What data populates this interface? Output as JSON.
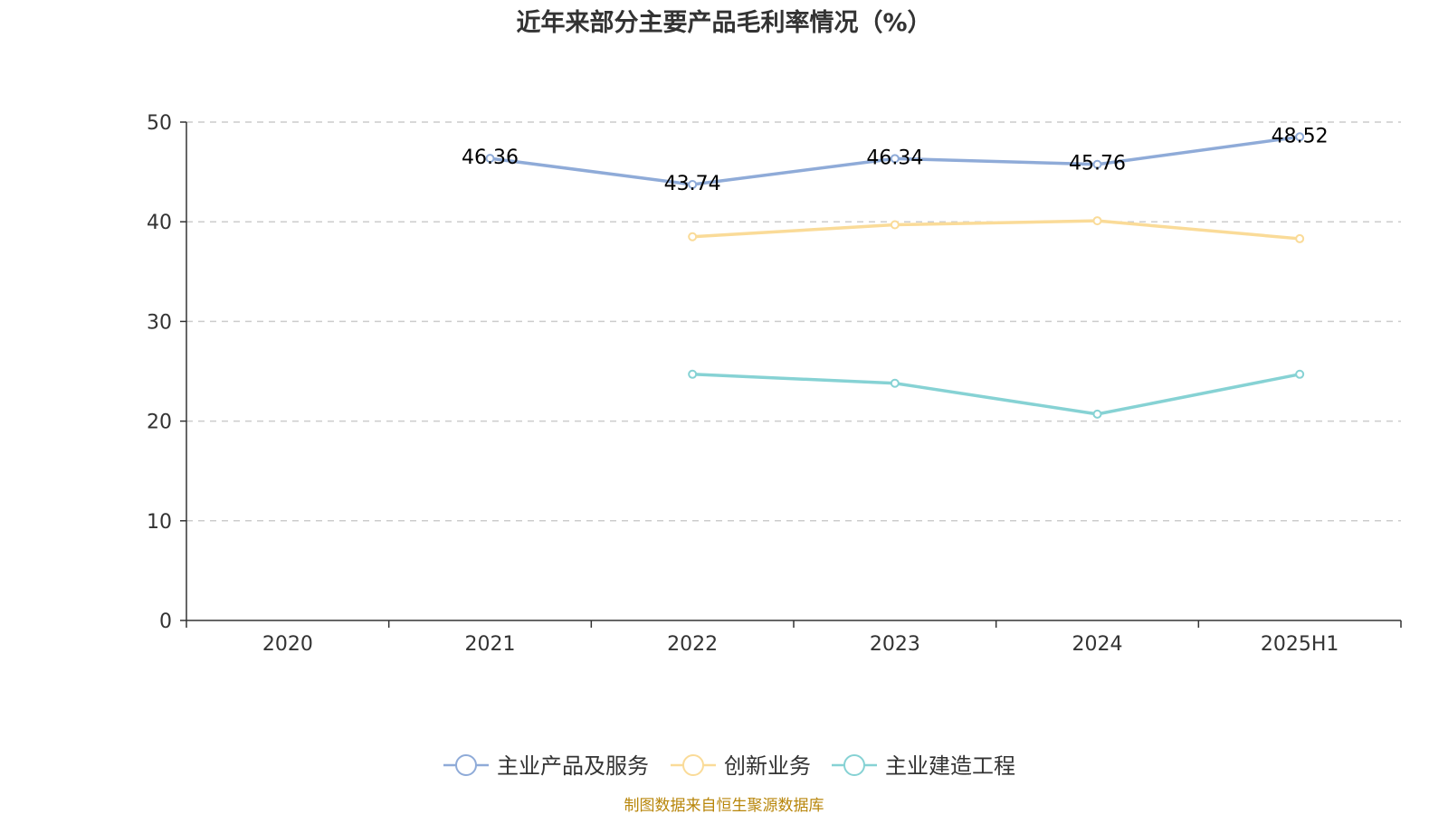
{
  "chart_data": {
    "type": "line",
    "title": "近年来部分主要产品毛利率情况（%）",
    "categories": [
      "2020",
      "2021",
      "2022",
      "2023",
      "2024",
      "2025H1"
    ],
    "ylim": [
      0,
      50
    ],
    "yticks": [
      0,
      10,
      20,
      30,
      40,
      50
    ],
    "grid": true,
    "legend_position": "bottom",
    "series": [
      {
        "name": "主业产品及服务",
        "color": "#8fabd8",
        "values": [
          null,
          46.36,
          43.74,
          46.34,
          45.76,
          48.52
        ],
        "labels": [
          "",
          "46.36",
          "43.74",
          "46.34",
          "45.76",
          "48.52"
        ]
      },
      {
        "name": "创新业务",
        "color": "#fadb98",
        "values": [
          null,
          null,
          38.5,
          39.7,
          40.1,
          38.3
        ],
        "labels": [
          "",
          "",
          "",
          "",
          "",
          ""
        ]
      },
      {
        "name": "主业建造工程",
        "color": "#86d2d4",
        "values": [
          null,
          null,
          24.7,
          23.8,
          20.7,
          24.7
        ],
        "labels": [
          "",
          "",
          "",
          "",
          "",
          ""
        ]
      }
    ]
  },
  "source": "制图数据来自恒生聚源数据库"
}
